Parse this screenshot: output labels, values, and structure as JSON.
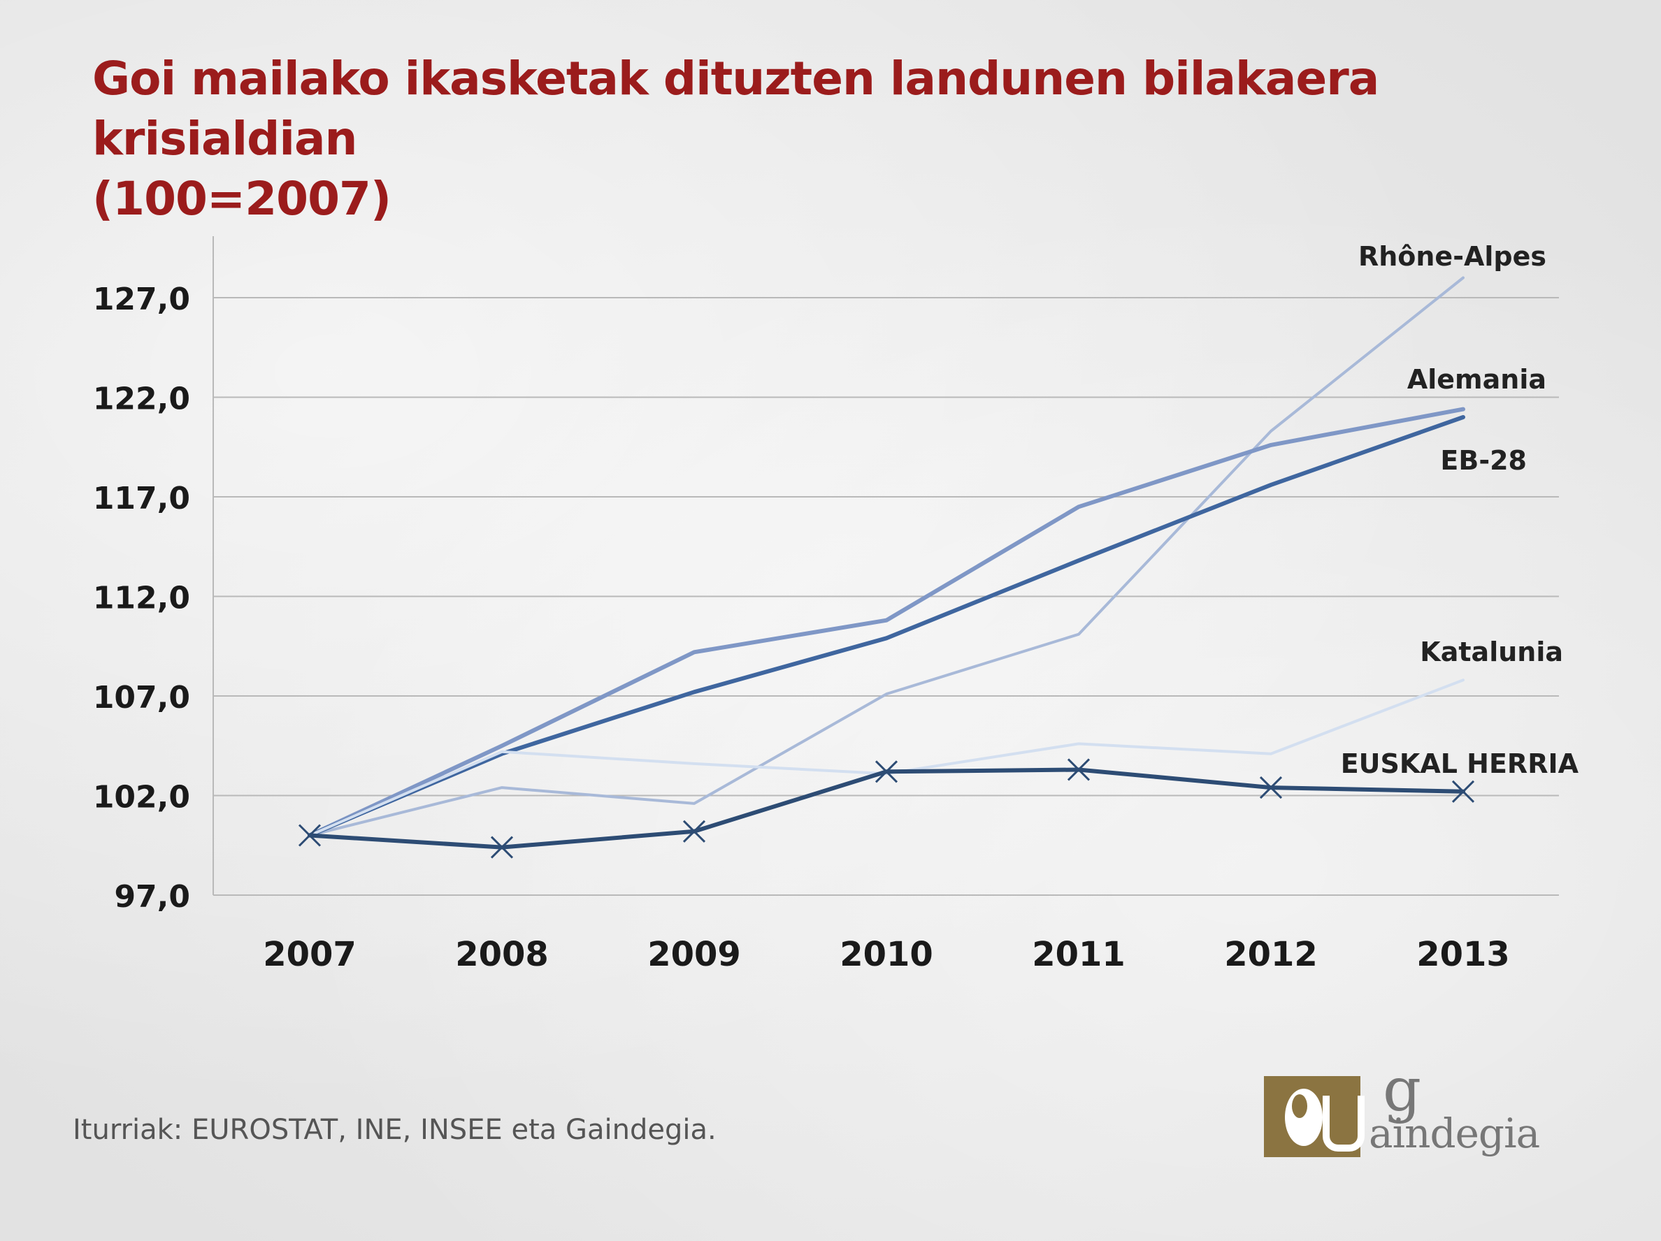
{
  "header": {
    "title_line1": "Goi mailako ikasketak dituzten landunen bilakaera krisialdian",
    "title_line2": "(100=2007)"
  },
  "footer": {
    "source": "Iturriak: EUROSTAT, INE, INSEE eta Gaindegia."
  },
  "logo": {
    "initial": "g",
    "word": "aindegia",
    "name": "Gaindegia"
  },
  "colors": {
    "title": "#9b1c1c",
    "grid": "#b9b9b9",
    "axis_text": "#1a1a1a",
    "logo_gold": "#8b7441"
  },
  "chart_data": {
    "type": "line",
    "title": "Goi mailako ikasketak dituzten landunen bilakaera krisialdian (100=2007)",
    "xlabel": "",
    "ylabel": "",
    "x": [
      "2007",
      "2008",
      "2009",
      "2010",
      "2011",
      "2012",
      "2013"
    ],
    "y_ticks": [
      97,
      102,
      107,
      112,
      117,
      122,
      127
    ],
    "y_tick_labels": [
      "97,0",
      "102,0",
      "107,0",
      "112,0",
      "117,0",
      "122,0",
      "127,0"
    ],
    "ylim": [
      97,
      130
    ],
    "grid": true,
    "legend": "labels at line ends",
    "series": [
      {
        "name": "Rhône-Alpes",
        "values": [
          100.0,
          102.4,
          101.6,
          107.1,
          110.1,
          120.3,
          128.0
        ],
        "color": "#a8b9d8",
        "width": 4,
        "markers": false
      },
      {
        "name": "Alemania",
        "values": [
          100.0,
          104.5,
          109.2,
          110.8,
          116.5,
          119.6,
          121.4
        ],
        "color": "#7f97c6",
        "width": 6,
        "markers": false
      },
      {
        "name": "EB-28",
        "values": [
          100.0,
          104.1,
          107.2,
          109.9,
          113.8,
          117.6,
          121.0
        ],
        "color": "#3f669f",
        "width": 6,
        "markers": false
      },
      {
        "name": "Katalunia",
        "values": [
          100.0,
          104.2,
          103.6,
          103.1,
          104.6,
          104.1,
          107.8
        ],
        "color": "#d3dff0",
        "width": 4,
        "markers": false
      },
      {
        "name": "EUSKAL HERRIA",
        "values": [
          100.0,
          99.4,
          100.2,
          103.2,
          103.3,
          102.4,
          102.2
        ],
        "color": "#2d4c74",
        "width": 6,
        "markers": true
      }
    ]
  }
}
